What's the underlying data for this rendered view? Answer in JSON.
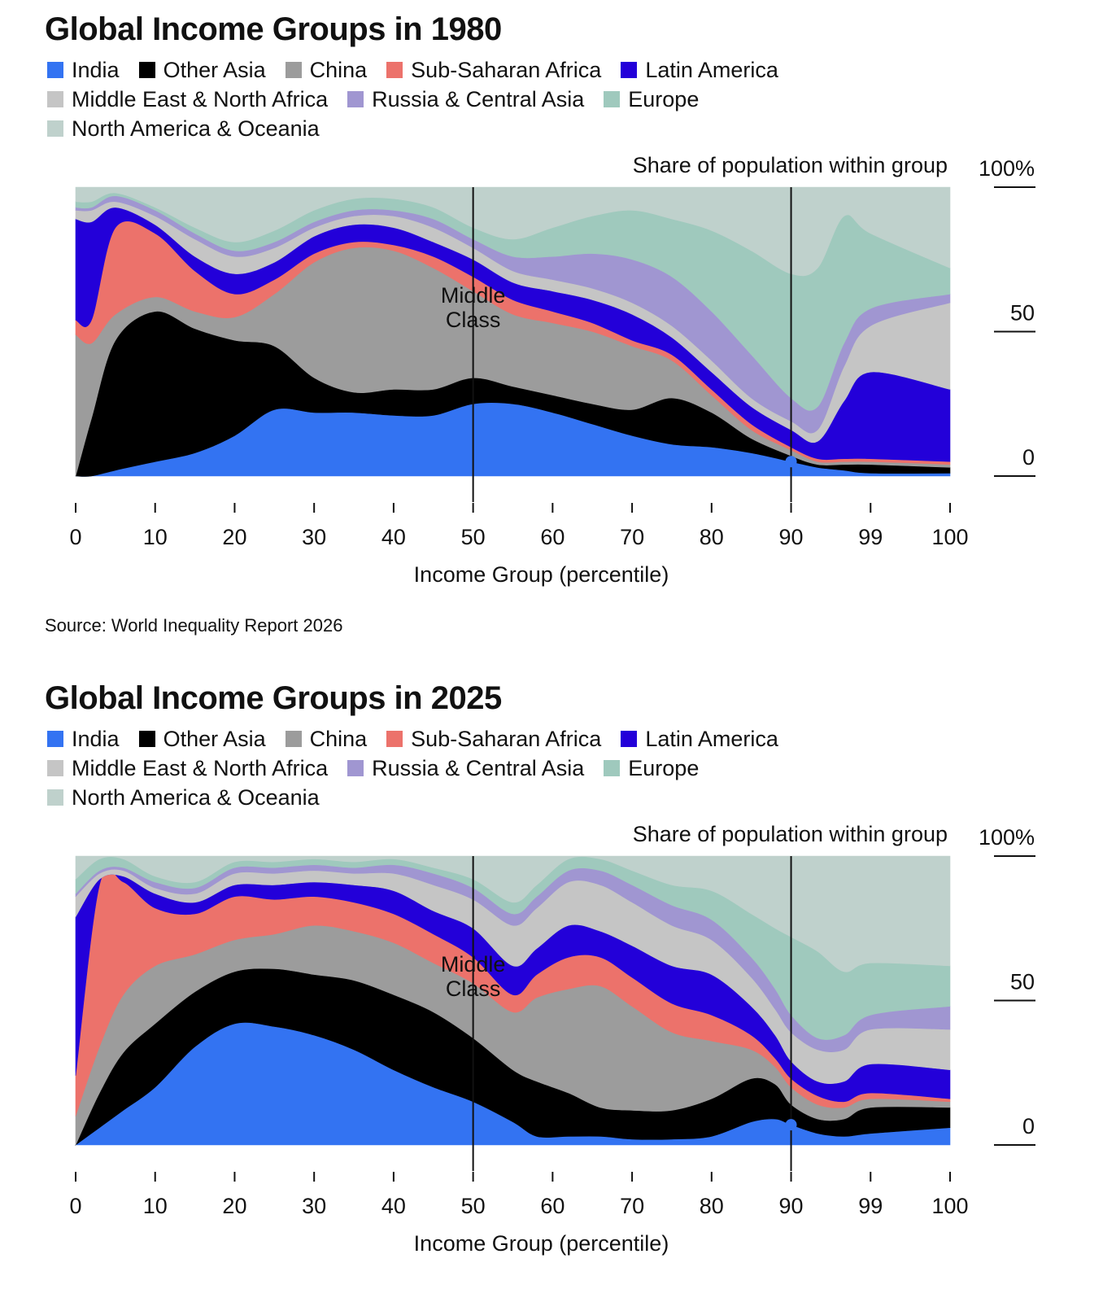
{
  "chart_data": [
    {
      "type": "area",
      "title": "Global Income Groups in 1980",
      "xlabel": "Income Group (percentile)",
      "ylabel": "Share of population within group",
      "ylim": [
        0,
        100
      ],
      "y_ticks": [
        "0",
        "50",
        "100%"
      ],
      "x_ticks": [
        "0",
        "10",
        "20",
        "30",
        "40",
        "50",
        "60",
        "70",
        "80",
        "90",
        "99",
        "100"
      ],
      "annotations": [
        "Middle",
        "Class"
      ],
      "source": "Source: World Inequality Report 2026",
      "x": [
        0,
        2,
        5,
        10,
        15,
        20,
        25,
        30,
        35,
        40,
        45,
        50,
        55,
        60,
        65,
        70,
        75,
        80,
        85,
        90,
        93,
        96,
        99,
        100
      ],
      "series": [
        {
          "name": "India",
          "values": [
            0,
            0,
            2,
            5,
            8,
            14,
            23,
            22,
            22,
            21,
            21,
            25,
            25,
            22,
            18,
            14,
            11,
            10,
            8,
            5,
            3,
            2,
            1,
            1
          ]
        },
        {
          "name": "Other Asia",
          "values": [
            0,
            20,
            45,
            52,
            43,
            33,
            22,
            12,
            7,
            9,
            9,
            9,
            6,
            6,
            7,
            9,
            16,
            12,
            5,
            2,
            1,
            2,
            3,
            2
          ]
        },
        {
          "name": "China",
          "values": [
            49,
            26,
            9,
            5,
            6,
            8,
            18,
            40,
            50,
            48,
            42,
            30,
            25,
            25,
            25,
            22,
            13,
            6,
            3,
            2,
            1,
            1,
            1,
            1
          ]
        },
        {
          "name": "Sub-Saharan Africa",
          "values": [
            5,
            8,
            30,
            22,
            14,
            8,
            5,
            3,
            2,
            2,
            4,
            5,
            5,
            4,
            3,
            2,
            2,
            2,
            2,
            1,
            1,
            1,
            1,
            1
          ]
        },
        {
          "name": "Latin America",
          "values": [
            35,
            34,
            7,
            3,
            5,
            7,
            6,
            6,
            6,
            6,
            5,
            6,
            6,
            7,
            8,
            9,
            6,
            6,
            6,
            6,
            6,
            20,
            30,
            25
          ]
        },
        {
          "name": "Middle East & North Africa",
          "values": [
            3,
            4,
            2,
            3,
            6,
            6,
            5,
            3,
            3,
            4,
            5,
            4,
            4,
            4,
            4,
            4,
            4,
            4,
            3,
            3,
            4,
            12,
            16,
            30
          ]
        },
        {
          "name": "Russia & Central Asia",
          "values": [
            1,
            1,
            2,
            2,
            2,
            2,
            2,
            2,
            2,
            2,
            3,
            3,
            5,
            8,
            12,
            15,
            17,
            17,
            15,
            8,
            8,
            8,
            6,
            3
          ]
        },
        {
          "name": "Europe",
          "values": [
            2,
            2,
            1,
            1,
            2,
            3,
            4,
            4,
            4,
            4,
            4,
            4,
            6,
            10,
            13,
            17,
            20,
            28,
            36,
            43,
            48,
            44,
            26,
            9
          ]
        },
        {
          "name": "North America & Oceania",
          "values": [
            5,
            5,
            2,
            7,
            14,
            19,
            15,
            8,
            4,
            4,
            7,
            14,
            18,
            14,
            10,
            8,
            11,
            15,
            22,
            30,
            28,
            10,
            16,
            28
          ]
        }
      ]
    },
    {
      "type": "area",
      "title": "Global Income Groups in 2025",
      "xlabel": "Income Group (percentile)",
      "ylabel": "Share of population within group",
      "ylim": [
        0,
        100
      ],
      "y_ticks": [
        "0",
        "50",
        "100%"
      ],
      "x_ticks": [
        "0",
        "10",
        "20",
        "30",
        "40",
        "50",
        "60",
        "70",
        "80",
        "90",
        "99",
        "100"
      ],
      "annotations": [
        "Middle",
        "Class"
      ],
      "x": [
        0,
        3,
        6,
        10,
        15,
        20,
        25,
        30,
        35,
        40,
        45,
        50,
        55,
        58,
        62,
        66,
        70,
        75,
        80,
        85,
        88,
        90,
        93,
        96,
        99,
        100
      ],
      "series": [
        {
          "name": "India",
          "values": [
            0,
            6,
            12,
            20,
            34,
            42,
            41,
            38,
            33,
            26,
            20,
            15,
            8,
            3,
            3,
            3,
            2,
            2,
            3,
            8,
            9,
            7,
            4,
            3,
            4,
            6
          ]
        },
        {
          "name": "Other Asia",
          "values": [
            0,
            12,
            20,
            22,
            19,
            18,
            20,
            21,
            24,
            26,
            26,
            22,
            18,
            19,
            15,
            10,
            10,
            10,
            13,
            15,
            12,
            7,
            5,
            6,
            9,
            7
          ]
        },
        {
          "name": "China",
          "values": [
            10,
            16,
            20,
            20,
            13,
            11,
            12,
            17,
            17,
            18,
            17,
            19,
            20,
            29,
            36,
            42,
            36,
            27,
            20,
            10,
            6,
            6,
            5,
            4,
            3,
            2
          ]
        },
        {
          "name": "Sub-Saharan Africa",
          "values": [
            14,
            56,
            39,
            20,
            14,
            15,
            12,
            10,
            10,
            10,
            10,
            9,
            6,
            8,
            11,
            10,
            10,
            10,
            9,
            5,
            3,
            3,
            3,
            2,
            2,
            1
          ]
        },
        {
          "name": "Latin America",
          "values": [
            55,
            2,
            2,
            5,
            4,
            4,
            5,
            5,
            6,
            8,
            8,
            10,
            10,
            9,
            11,
            9,
            11,
            13,
            14,
            10,
            8,
            6,
            5,
            7,
            10,
            10
          ]
        },
        {
          "name": "Middle East & North Africa",
          "values": [
            7,
            2,
            2,
            2,
            3,
            4,
            4,
            4,
            4,
            6,
            9,
            10,
            14,
            14,
            15,
            16,
            15,
            14,
            12,
            10,
            9,
            10,
            11,
            11,
            12,
            14
          ]
        },
        {
          "name": "Russia & Central Asia",
          "values": [
            1,
            1,
            1,
            2,
            2,
            2,
            2,
            2,
            2,
            3,
            4,
            4,
            4,
            4,
            4,
            5,
            6,
            7,
            7,
            7,
            7,
            6,
            4,
            5,
            5,
            8
          ]
        },
        {
          "name": "Europe",
          "values": [
            5,
            4,
            3,
            2,
            2,
            2,
            2,
            2,
            2,
            2,
            2,
            3,
            4,
            4,
            4,
            4,
            5,
            7,
            10,
            15,
            21,
            27,
            30,
            22,
            18,
            14
          ]
        },
        {
          "name": "North America & Oceania",
          "values": [
            8,
            1,
            1,
            7,
            9,
            2,
            2,
            1,
            2,
            1,
            4,
            8,
            16,
            10,
            1,
            1,
            5,
            10,
            12,
            20,
            25,
            28,
            33,
            40,
            37,
            38
          ]
        }
      ]
    }
  ],
  "legend": {
    "items": [
      {
        "label": "India",
        "color": "#3373f2"
      },
      {
        "label": "Other Asia",
        "color": "#000000"
      },
      {
        "label": "China",
        "color": "#9c9c9c"
      },
      {
        "label": "Sub-Saharan Africa",
        "color": "#ec726b"
      },
      {
        "label": "Latin America",
        "color": "#2300d9"
      },
      {
        "label": "Middle East & North Africa",
        "color": "#c5c5c5"
      },
      {
        "label": "Russia & Central Asia",
        "color": "#a096d1"
      },
      {
        "label": "Europe",
        "color": "#9fc9bd"
      },
      {
        "label": "North America & Oceania",
        "color": "#bfd1cc"
      }
    ]
  }
}
